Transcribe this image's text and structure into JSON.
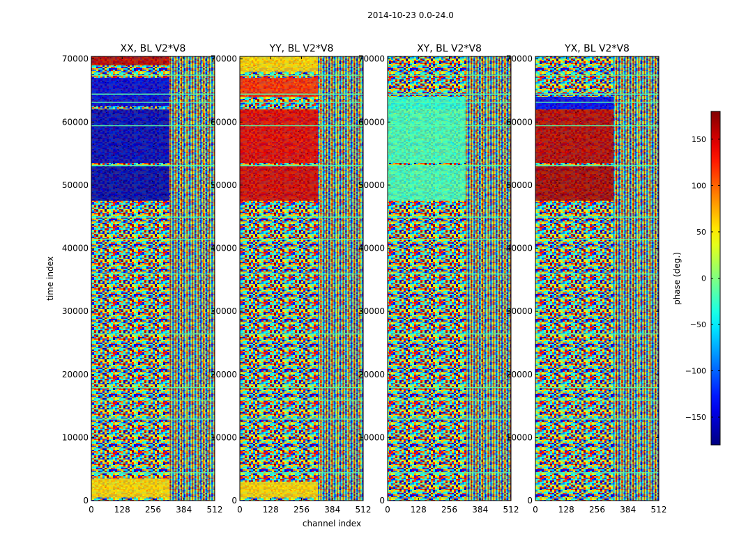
{
  "chart_data": {
    "type": "heatmap",
    "suptitle": "2014-10-23 0.0-24.0",
    "xlabel": "channel index",
    "ylabel": "time index",
    "xlim": [
      0,
      512
    ],
    "ylim": [
      0,
      70400
    ],
    "x_ticks": [
      0,
      128,
      256,
      384,
      512
    ],
    "y_ticks": [
      0,
      10000,
      20000,
      30000,
      40000,
      50000,
      60000,
      70000
    ],
    "split_channel": 324,
    "panels": [
      {
        "title": "XX, BL V2*V8",
        "blocks": [
          {
            "y0": 47500,
            "y1": 53000,
            "x0": 0,
            "x1": 324,
            "phase": -165
          },
          {
            "y0": 53500,
            "y1": 62000,
            "x0": 0,
            "x1": 324,
            "phase": -160
          },
          {
            "y0": 62500,
            "y1": 67000,
            "x0": 0,
            "x1": 324,
            "phase": -150
          },
          {
            "y0": 69000,
            "y1": 70500,
            "x0": 0,
            "x1": 324,
            "phase": 160
          },
          {
            "y0": 500,
            "y1": 3500,
            "x0": 0,
            "x1": 324,
            "phase": 60
          }
        ]
      },
      {
        "title": "YY, BL V2*V8",
        "blocks": [
          {
            "y0": 47500,
            "y1": 53000,
            "x0": 0,
            "x1": 324,
            "phase": 150
          },
          {
            "y0": 53500,
            "y1": 62000,
            "x0": 0,
            "x1": 324,
            "phase": 145
          },
          {
            "y0": 64000,
            "y1": 67000,
            "x0": 0,
            "x1": 324,
            "phase": 120
          },
          {
            "y0": 68000,
            "y1": 70500,
            "x0": 0,
            "x1": 324,
            "phase": 60
          },
          {
            "y0": 500,
            "y1": 3000,
            "x0": 0,
            "x1": 324,
            "phase": 60
          }
        ]
      },
      {
        "title": "XY, BL V2*V8",
        "blocks": [
          {
            "y0": 47500,
            "y1": 53000,
            "x0": 0,
            "x1": 324,
            "phase": -20
          },
          {
            "y0": 53500,
            "y1": 62000,
            "x0": 0,
            "x1": 324,
            "phase": -20
          },
          {
            "y0": 62000,
            "y1": 64000,
            "x0": 0,
            "x1": 324,
            "phase": -30
          }
        ]
      },
      {
        "title": "YX, BL V2*V8",
        "blocks": [
          {
            "y0": 47500,
            "y1": 53000,
            "x0": 0,
            "x1": 324,
            "phase": 165
          },
          {
            "y0": 53500,
            "y1": 62000,
            "x0": 0,
            "x1": 324,
            "phase": 160
          },
          {
            "y0": 62000,
            "y1": 64000,
            "x0": 0,
            "x1": 324,
            "phase": -140
          }
        ]
      }
    ],
    "colorbar": {
      "label": "phase (deg.)",
      "range": [
        -180,
        180
      ],
      "ticks": [
        150,
        100,
        50,
        0,
        -50,
        -100,
        -150
      ],
      "tick_labels": [
        "150",
        "100",
        "50",
        "0",
        "−50",
        "−100",
        "−150"
      ],
      "colormap": "jet"
    }
  }
}
